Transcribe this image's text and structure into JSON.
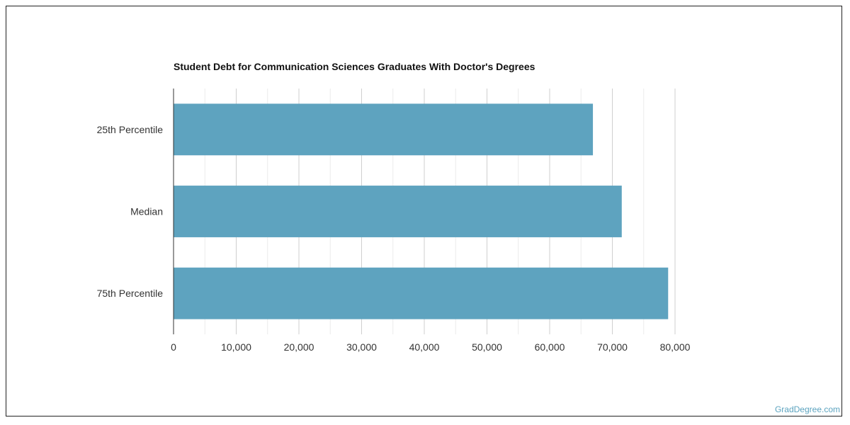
{
  "chart_data": {
    "type": "bar",
    "orientation": "horizontal",
    "title": "Student Debt for Communication Sciences Graduates With Doctor's Degrees",
    "categories": [
      "25th Percentile",
      "Median",
      "75th Percentile"
    ],
    "values": [
      66900,
      71500,
      78900
    ],
    "xlim": [
      0,
      80000
    ],
    "xticks": [
      "0",
      "10,000",
      "20,000",
      "30,000",
      "40,000",
      "50,000",
      "60,000",
      "70,000",
      "80,000"
    ],
    "xtick_values": [
      0,
      10000,
      20000,
      30000,
      40000,
      50000,
      60000,
      70000,
      80000
    ],
    "grid": true,
    "bar_color": "#5ea3bf"
  },
  "watermark": "GradDegree.com"
}
